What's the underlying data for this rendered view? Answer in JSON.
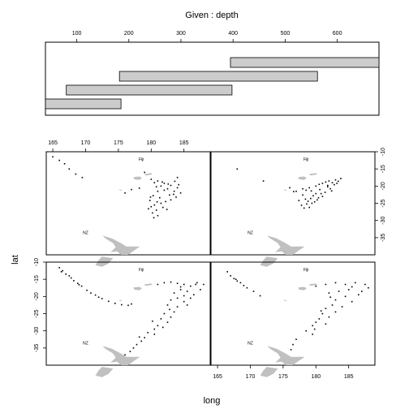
{
  "chart_data": {
    "type": "scatter",
    "given_panel": {
      "title": "Given : depth",
      "x_ticks": [
        100,
        200,
        300,
        400,
        500,
        600
      ],
      "xlim": [
        40,
        680
      ],
      "intervals": [
        {
          "from": 40,
          "to": 185
        },
        {
          "from": 80,
          "to": 398
        },
        {
          "from": 182,
          "to": 562
        },
        {
          "from": 395,
          "to": 680
        }
      ]
    },
    "xlabel": "long",
    "ylabel": "lat",
    "xlim": [
      164,
      189
    ],
    "ylim": [
      -40,
      -10
    ],
    "x_ticks": [
      165,
      170,
      175,
      180,
      185
    ],
    "y_ticks": [
      -10,
      -15,
      -20,
      -25,
      -30,
      -35
    ],
    "land_labels": [
      "Fiji",
      "NZ"
    ],
    "panels": [
      {
        "depth_interval": 1,
        "points": [
          [
            166,
            -11.6
          ],
          [
            166.5,
            -12.5
          ],
          [
            167,
            -13.5
          ],
          [
            167.8,
            -14.6
          ],
          [
            168.2,
            -15.4
          ],
          [
            168.8,
            -16.2
          ],
          [
            169.4,
            -17.0
          ],
          [
            170.2,
            -18.2
          ],
          [
            171.5,
            -19.6
          ],
          [
            172.5,
            -20.6
          ],
          [
            173.5,
            -21.4
          ],
          [
            174.5,
            -22.0
          ],
          [
            175.5,
            -22.4
          ],
          [
            176.5,
            -22.6
          ],
          [
            177,
            -22.2
          ],
          [
            166.3,
            -12.8
          ],
          [
            167.5,
            -14.0
          ],
          [
            169,
            -16.6
          ],
          [
            170.8,
            -19.0
          ],
          [
            172,
            -20.2
          ],
          [
            181,
            -16.5
          ],
          [
            182,
            -16.0
          ],
          [
            183,
            -15.8
          ],
          [
            184,
            -16.2
          ],
          [
            185,
            -16.5
          ],
          [
            186,
            -17.0
          ],
          [
            187,
            -16.0
          ],
          [
            188,
            -16.5
          ],
          [
            184.5,
            -18.0
          ],
          [
            183.5,
            -19.0
          ],
          [
            185.5,
            -18.5
          ],
          [
            186.5,
            -19.5
          ],
          [
            187.5,
            -18.0
          ],
          [
            184,
            -20.5
          ],
          [
            185,
            -21.5
          ],
          [
            186,
            -20.5
          ],
          [
            183,
            -21.0
          ],
          [
            182.5,
            -22.5
          ],
          [
            184,
            -23.0
          ],
          [
            185.5,
            -22.5
          ],
          [
            183.5,
            -24.5
          ],
          [
            182,
            -25.0
          ],
          [
            181.5,
            -26.5
          ],
          [
            183,
            -26.0
          ],
          [
            182.5,
            -27.5
          ],
          [
            181,
            -28.5
          ],
          [
            180.5,
            -29.5
          ],
          [
            181.8,
            -29.0
          ],
          [
            179.5,
            -30.5
          ],
          [
            180.5,
            -31.0
          ],
          [
            179,
            -32.0
          ],
          [
            178.5,
            -33.0
          ],
          [
            177.8,
            -34.0
          ],
          [
            177.3,
            -35.0
          ],
          [
            176.8,
            -36.0
          ],
          [
            176,
            -37.0
          ],
          [
            184.5,
            -17.2
          ],
          [
            186.8,
            -16.5
          ],
          [
            185,
            -19.8
          ],
          [
            182.8,
            -23.8
          ],
          [
            180.2,
            -27.2
          ],
          [
            178.2,
            -31.8
          ]
        ]
      },
      {
        "depth_interval": 2,
        "points": [
          [
            166.5,
            -12.8
          ],
          [
            167,
            -14.0
          ],
          [
            167.5,
            -14.8
          ],
          [
            168,
            -15.5
          ],
          [
            168.5,
            -16.0
          ],
          [
            169.5,
            -17.5
          ],
          [
            170.5,
            -18.5
          ],
          [
            171.5,
            -19.8
          ],
          [
            167.8,
            -15.0
          ],
          [
            169,
            -16.8
          ],
          [
            180,
            -17.0
          ],
          [
            181.5,
            -16.5
          ],
          [
            183,
            -16.0
          ],
          [
            184.5,
            -16.5
          ],
          [
            186,
            -16.0
          ],
          [
            187.5,
            -16.5
          ],
          [
            188,
            -17.5
          ],
          [
            185,
            -18.0
          ],
          [
            183.5,
            -18.5
          ],
          [
            182,
            -19.0
          ],
          [
            186.5,
            -19.5
          ],
          [
            184.5,
            -20.0
          ],
          [
            183,
            -21.0
          ],
          [
            185.5,
            -21.5
          ],
          [
            182.5,
            -22.5
          ],
          [
            184,
            -23.0
          ],
          [
            181.5,
            -23.5
          ],
          [
            183,
            -24.5
          ],
          [
            181,
            -25.0
          ],
          [
            182,
            -26.0
          ],
          [
            180.5,
            -26.5
          ],
          [
            180,
            -27.5
          ],
          [
            181.5,
            -28.0
          ],
          [
            179.5,
            -28.5
          ],
          [
            178.5,
            -30.0
          ],
          [
            179.5,
            -31.0
          ],
          [
            177,
            -32.5
          ],
          [
            176.5,
            -34.0
          ],
          [
            187,
            -18.5
          ],
          [
            185.5,
            -17.2
          ],
          [
            182.2,
            -20.2
          ],
          [
            180.8,
            -24.2
          ],
          [
            179.8,
            -29.5
          ],
          [
            176.2,
            -35.5
          ]
        ]
      },
      {
        "depth_interval": 3,
        "points": [
          [
            165,
            -11.5
          ],
          [
            166,
            -12.5
          ],
          [
            166.8,
            -13.5
          ],
          [
            167.5,
            -15.0
          ],
          [
            168.5,
            -16.5
          ],
          [
            169.5,
            -17.5
          ],
          [
            179,
            -16.0
          ],
          [
            184,
            -17.5
          ],
          [
            180,
            -18.0
          ],
          [
            180.5,
            -19.0
          ],
          [
            181,
            -18.5
          ],
          [
            181.5,
            -20.0
          ],
          [
            182,
            -19.2
          ],
          [
            182.5,
            -20.8
          ],
          [
            183,
            -19.8
          ],
          [
            183.5,
            -21.5
          ],
          [
            184,
            -20.5
          ],
          [
            184.5,
            -22.0
          ],
          [
            182,
            -21.2
          ],
          [
            181,
            -21.5
          ],
          [
            180.8,
            -20.2
          ],
          [
            182.8,
            -22.6
          ],
          [
            183.8,
            -23.2
          ],
          [
            183,
            -24.0
          ],
          [
            182.2,
            -24.5
          ],
          [
            181.5,
            -25.0
          ],
          [
            180.5,
            -25.5
          ],
          [
            180,
            -26.0
          ],
          [
            181.8,
            -26.2
          ],
          [
            180.8,
            -27.0
          ],
          [
            180.2,
            -27.8
          ],
          [
            179.6,
            -26.6
          ],
          [
            181.3,
            -23.4
          ],
          [
            183.4,
            -22.4
          ],
          [
            182.6,
            -19.4
          ],
          [
            181.7,
            -18.8
          ],
          [
            180.3,
            -22.8
          ],
          [
            179.8,
            -24.2
          ],
          [
            182.4,
            -26.8
          ],
          [
            181,
            -28.6
          ],
          [
            180.4,
            -29.2
          ],
          [
            183.6,
            -18.6
          ],
          [
            184.2,
            -19.6
          ],
          [
            180.9,
            -24.6
          ],
          [
            179.9,
            -23.2
          ],
          [
            177,
            -21.0
          ],
          [
            176,
            -22.0
          ],
          [
            178.2,
            -20.6
          ]
        ]
      },
      {
        "depth_interval": 4,
        "points": [
          [
            176,
            -20.5
          ],
          [
            177,
            -21.5
          ],
          [
            178,
            -20.8
          ],
          [
            178.5,
            -21.2
          ],
          [
            179,
            -20.5
          ],
          [
            180,
            -20.0
          ],
          [
            180.5,
            -19.5
          ],
          [
            181,
            -19.2
          ],
          [
            181.5,
            -18.8
          ],
          [
            182,
            -18.5
          ],
          [
            182.5,
            -19.0
          ],
          [
            183,
            -18.2
          ],
          [
            183.2,
            -19.2
          ],
          [
            181.8,
            -20.2
          ],
          [
            180.6,
            -21.0
          ],
          [
            180,
            -22.2
          ],
          [
            179.6,
            -22.8
          ],
          [
            179.2,
            -23.6
          ],
          [
            178.8,
            -24.4
          ],
          [
            178.6,
            -25.2
          ],
          [
            179.4,
            -25.0
          ],
          [
            180.2,
            -24.0
          ],
          [
            181,
            -23.0
          ],
          [
            181.4,
            -21.8
          ],
          [
            182.2,
            -20.8
          ],
          [
            180.8,
            -22.2
          ],
          [
            179.8,
            -24.6
          ],
          [
            178.4,
            -23.8
          ],
          [
            177.8,
            -25.6
          ],
          [
            178.2,
            -26.4
          ],
          [
            179,
            -26.2
          ],
          [
            180.4,
            -23.4
          ],
          [
            181.8,
            -19.8
          ],
          [
            182.8,
            -19.6
          ],
          [
            183.4,
            -18.6
          ],
          [
            182.4,
            -21.4
          ],
          [
            179.3,
            -21.4
          ],
          [
            178,
            -22.6
          ],
          [
            177.4,
            -24.2
          ],
          [
            176.6,
            -21.6
          ],
          [
            168,
            -15.0
          ],
          [
            172,
            -18.5
          ],
          [
            183.8,
            -17.8
          ]
        ]
      }
    ]
  }
}
